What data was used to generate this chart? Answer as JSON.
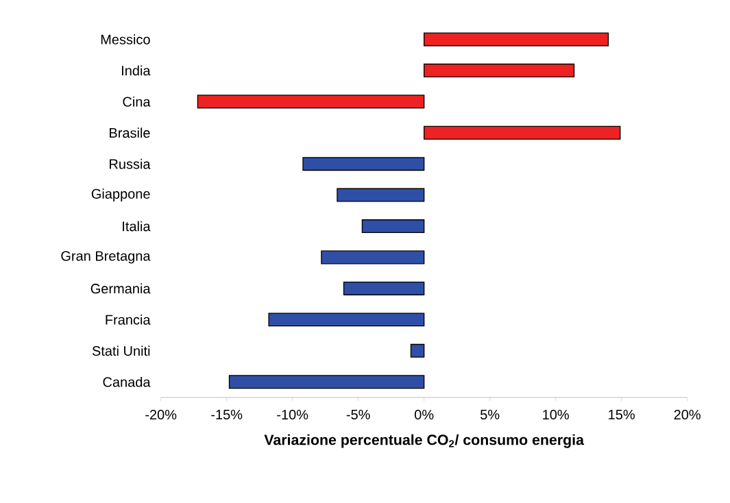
{
  "chart_data": {
    "type": "bar",
    "orientation": "horizontal",
    "xlabel": "Variazione percentuale CO$_{2}$/ consumo energia",
    "categories": [
      "Messico",
      "India",
      "Cina",
      "Brasile",
      "Russia",
      "Giappone",
      "Italia",
      "Gran Bretagna",
      "Germania",
      "Francia",
      "Stati Uniti",
      "Canada"
    ],
    "values": [
      0.14,
      0.114,
      -0.172,
      0.149,
      -0.092,
      -0.066,
      -0.047,
      -0.078,
      -0.061,
      -0.118,
      -0.01,
      -0.148
    ],
    "colors": [
      "#ee2222",
      "#ee2222",
      "#ee2222",
      "#ee2222",
      "#2f4fa6",
      "#2f4fa6",
      "#2f4fa6",
      "#2f4fa6",
      "#2f4fa6",
      "#2f4fa6",
      "#2f4fa6",
      "#2f4fa6"
    ],
    "xlim": [
      -0.2,
      0.2
    ],
    "xticks": [
      {
        "value": -0.2,
        "label": "-20%"
      },
      {
        "value": -0.15,
        "label": "-15%"
      },
      {
        "value": -0.1,
        "label": "-10%"
      },
      {
        "value": -0.05,
        "label": "-5%"
      },
      {
        "value": 0,
        "label": "0%"
      },
      {
        "value": 0.05,
        "label": "5%"
      },
      {
        "value": 0.1,
        "label": "10%"
      },
      {
        "value": 0.15,
        "label": "15%"
      },
      {
        "value": 0.2,
        "label": "20%"
      }
    ]
  }
}
